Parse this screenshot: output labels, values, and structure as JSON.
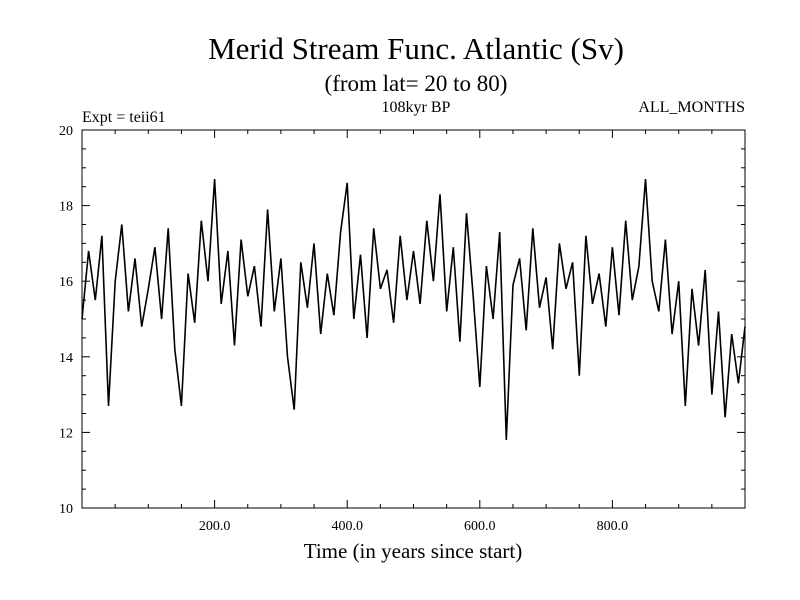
{
  "chart_data": {
    "type": "line",
    "title": "Merid Stream Func. Atlantic (Sv)",
    "subtitle": "(from lat= 20 to 80)",
    "experiment_label": "Expt = teii61",
    "period_label": "108kyr BP",
    "months_label": "ALL_MONTHS",
    "xlabel": "Time (in years since start)",
    "ylabel": "",
    "xlim": [
      0,
      1000
    ],
    "ylim": [
      10,
      20
    ],
    "x_ticks": [
      200,
      400,
      600,
      800
    ],
    "x_tick_labels": [
      "200.0",
      "400.0",
      "600.0",
      "800.0"
    ],
    "y_ticks": [
      10,
      12,
      14,
      16,
      18,
      20
    ],
    "y_tick_labels": [
      "10",
      "12",
      "14",
      "16",
      "18",
      "20"
    ],
    "grid": false,
    "legend": "none",
    "series": [
      {
        "color": "#000000",
        "x": [
          0,
          10,
          20,
          30,
          40,
          50,
          60,
          70,
          80,
          90,
          100,
          110,
          120,
          130,
          140,
          150,
          160,
          170,
          180,
          190,
          200,
          210,
          220,
          230,
          240,
          250,
          260,
          270,
          280,
          290,
          300,
          310,
          320,
          330,
          340,
          350,
          360,
          370,
          380,
          390,
          400,
          410,
          420,
          430,
          440,
          450,
          460,
          470,
          480,
          490,
          500,
          510,
          520,
          530,
          540,
          550,
          560,
          570,
          580,
          590,
          600,
          610,
          620,
          630,
          640,
          650,
          660,
          670,
          680,
          690,
          700,
          710,
          720,
          730,
          740,
          750,
          760,
          770,
          780,
          790,
          800,
          810,
          820,
          830,
          840,
          850,
          860,
          870,
          880,
          890,
          900,
          910,
          920,
          930,
          940,
          950,
          960,
          970,
          980,
          990,
          1000
        ],
        "y": [
          15.0,
          16.8,
          15.5,
          17.2,
          12.7,
          16.0,
          17.5,
          15.2,
          16.6,
          14.8,
          15.8,
          16.9,
          15.0,
          17.4,
          14.2,
          12.7,
          16.2,
          14.9,
          17.6,
          16.0,
          18.7,
          15.4,
          16.8,
          14.3,
          17.1,
          15.6,
          16.4,
          14.8,
          17.9,
          15.2,
          16.6,
          14.0,
          12.6,
          16.5,
          15.3,
          17.0,
          14.6,
          16.2,
          15.1,
          17.3,
          18.6,
          15.0,
          16.7,
          14.5,
          17.4,
          15.8,
          16.3,
          14.9,
          17.2,
          15.5,
          16.8,
          15.4,
          17.6,
          16.0,
          18.3,
          15.2,
          16.9,
          14.4,
          17.8,
          15.6,
          13.2,
          16.4,
          15.0,
          17.3,
          11.8,
          15.9,
          16.6,
          14.7,
          17.4,
          15.3,
          16.1,
          14.2,
          17.0,
          15.8,
          16.5,
          13.5,
          17.2,
          15.4,
          16.2,
          14.8,
          16.9,
          15.1,
          17.6,
          15.5,
          16.4,
          18.7,
          16.0,
          15.2,
          17.1,
          14.6,
          16.0,
          12.7,
          15.8,
          14.3,
          16.3,
          13.0,
          15.2,
          12.4,
          14.6,
          13.3,
          14.8
        ]
      }
    ]
  }
}
